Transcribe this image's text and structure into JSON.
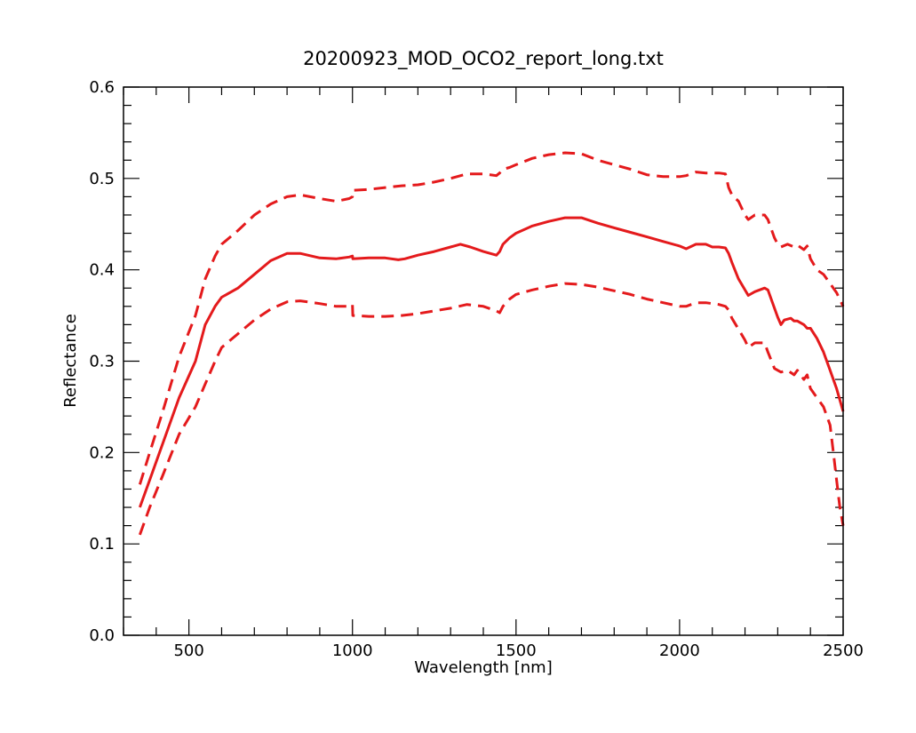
{
  "chart_data": {
    "type": "line",
    "title": "20200923_MOD_OCO2_report_long.txt",
    "xlabel": "Wavelength [nm]",
    "ylabel": "Reflectance",
    "xlim": [
      300,
      2500
    ],
    "ylim": [
      0.0,
      0.6
    ],
    "x_ticks": [
      500,
      1000,
      1500,
      2000,
      2500
    ],
    "x_tick_labels": [
      "500",
      "1000",
      "1500",
      "2000",
      "2500"
    ],
    "y_ticks": [
      0.0,
      0.1,
      0.2,
      0.3,
      0.4,
      0.5,
      0.6
    ],
    "y_tick_labels": [
      "0.0",
      "0.1",
      "0.2",
      "0.3",
      "0.4",
      "0.5",
      "0.6"
    ],
    "grid": false,
    "line_color": "#e41a1c",
    "series": [
      {
        "style": "solid",
        "x": [
          350,
          380,
          420,
          470,
          520,
          550,
          580,
          600,
          650,
          700,
          750,
          800,
          840,
          900,
          950,
          990,
          1000,
          1001,
          1050,
          1100,
          1140,
          1160,
          1200,
          1250,
          1300,
          1330,
          1360,
          1400,
          1440,
          1450,
          1460,
          1480,
          1500,
          1550,
          1600,
          1650,
          1700,
          1750,
          1800,
          1850,
          1900,
          1950,
          2000,
          2020,
          2050,
          2080,
          2100,
          2120,
          2140,
          2150,
          2160,
          2180,
          2200,
          2210,
          2230,
          2260,
          2270,
          2290,
          2300,
          2310,
          2320,
          2340,
          2350,
          2360,
          2380,
          2390,
          2400,
          2420,
          2440,
          2460,
          2480,
          2500
        ],
        "y": [
          0.14,
          0.17,
          0.21,
          0.26,
          0.3,
          0.34,
          0.36,
          0.37,
          0.38,
          0.395,
          0.41,
          0.418,
          0.418,
          0.413,
          0.412,
          0.414,
          0.415,
          0.412,
          0.413,
          0.413,
          0.411,
          0.412,
          0.416,
          0.42,
          0.425,
          0.428,
          0.425,
          0.42,
          0.416,
          0.42,
          0.428,
          0.435,
          0.44,
          0.448,
          0.453,
          0.457,
          0.457,
          0.451,
          0.446,
          0.441,
          0.436,
          0.431,
          0.426,
          0.423,
          0.428,
          0.428,
          0.425,
          0.425,
          0.424,
          0.418,
          0.408,
          0.39,
          0.378,
          0.372,
          0.376,
          0.38,
          0.378,
          0.358,
          0.348,
          0.34,
          0.345,
          0.347,
          0.344,
          0.344,
          0.34,
          0.336,
          0.336,
          0.325,
          0.31,
          0.29,
          0.27,
          0.245
        ]
      },
      {
        "style": "dashed",
        "x": [
          350,
          380,
          420,
          470,
          520,
          550,
          580,
          600,
          650,
          700,
          750,
          800,
          840,
          900,
          950,
          990,
          1000,
          1001,
          1050,
          1100,
          1150,
          1200,
          1250,
          1300,
          1350,
          1400,
          1440,
          1450,
          1460,
          1480,
          1500,
          1550,
          1600,
          1650,
          1700,
          1750,
          1800,
          1850,
          1900,
          1950,
          2000,
          2020,
          2050,
          2080,
          2100,
          2120,
          2140,
          2150,
          2160,
          2180,
          2200,
          2210,
          2230,
          2260,
          2270,
          2290,
          2300,
          2310,
          2330,
          2350,
          2360,
          2380,
          2390,
          2400,
          2420,
          2440,
          2460,
          2480,
          2500
        ],
        "y": [
          0.165,
          0.2,
          0.245,
          0.305,
          0.35,
          0.39,
          0.415,
          0.428,
          0.443,
          0.46,
          0.472,
          0.48,
          0.482,
          0.478,
          0.475,
          0.478,
          0.48,
          0.487,
          0.488,
          0.49,
          0.492,
          0.493,
          0.496,
          0.5,
          0.505,
          0.505,
          0.503,
          0.506,
          0.51,
          0.512,
          0.515,
          0.522,
          0.526,
          0.528,
          0.527,
          0.52,
          0.515,
          0.51,
          0.504,
          0.502,
          0.502,
          0.503,
          0.507,
          0.506,
          0.506,
          0.506,
          0.505,
          0.49,
          0.482,
          0.475,
          0.46,
          0.455,
          0.46,
          0.46,
          0.455,
          0.435,
          0.428,
          0.425,
          0.428,
          0.425,
          0.427,
          0.422,
          0.426,
          0.412,
          0.4,
          0.395,
          0.385,
          0.375,
          0.36
        ]
      },
      {
        "style": "dashed",
        "x": [
          350,
          380,
          420,
          470,
          520,
          550,
          580,
          600,
          650,
          700,
          750,
          800,
          840,
          900,
          950,
          990,
          1000,
          1001,
          1050,
          1100,
          1150,
          1200,
          1250,
          1300,
          1350,
          1400,
          1440,
          1450,
          1460,
          1480,
          1500,
          1550,
          1600,
          1650,
          1700,
          1750,
          1800,
          1850,
          1900,
          1950,
          2000,
          2020,
          2050,
          2080,
          2100,
          2120,
          2140,
          2150,
          2160,
          2180,
          2200,
          2210,
          2230,
          2260,
          2270,
          2290,
          2300,
          2310,
          2330,
          2350,
          2360,
          2380,
          2390,
          2400,
          2420,
          2440,
          2460,
          2470,
          2480,
          2490,
          2500
        ],
        "y": [
          0.11,
          0.14,
          0.175,
          0.22,
          0.25,
          0.275,
          0.3,
          0.315,
          0.33,
          0.345,
          0.357,
          0.365,
          0.366,
          0.363,
          0.36,
          0.36,
          0.362,
          0.35,
          0.349,
          0.349,
          0.35,
          0.352,
          0.355,
          0.358,
          0.362,
          0.36,
          0.355,
          0.353,
          0.36,
          0.368,
          0.373,
          0.378,
          0.382,
          0.385,
          0.384,
          0.381,
          0.377,
          0.373,
          0.368,
          0.364,
          0.36,
          0.36,
          0.364,
          0.364,
          0.363,
          0.362,
          0.36,
          0.356,
          0.347,
          0.335,
          0.323,
          0.315,
          0.32,
          0.32,
          0.31,
          0.292,
          0.29,
          0.288,
          0.29,
          0.285,
          0.29,
          0.28,
          0.285,
          0.27,
          0.26,
          0.25,
          0.23,
          0.2,
          0.17,
          0.14,
          0.12
        ]
      }
    ]
  }
}
